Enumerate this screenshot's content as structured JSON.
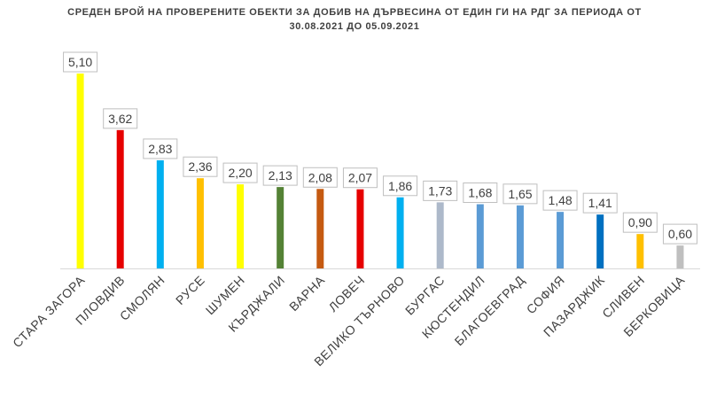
{
  "chart_data": {
    "type": "bar",
    "title_line1": "СРЕДЕН БРОЙ НА ПРОВЕРЕНИТЕ ОБЕКТИ ЗА ДОБИВ НА ДЪРВЕСИНА ОТ ЕДИН ГИ НА РДГ ЗА ПЕРИОДА ОТ",
    "title_line2": "30.08.2021 ДО 05.09.2021",
    "categories": [
      "СТАРА ЗАГОРА",
      "ПЛОВДИВ",
      "СМОЛЯН",
      "РУСЕ",
      "ШУМЕН",
      "КЪРДЖАЛИ",
      "ВАРНА",
      "ЛОВЕЧ",
      "ВЕЛИКО ТЪРНОВО",
      "БУРГАС",
      "КЮСТЕНДИЛ",
      "БЛАГОЕВГРАД",
      "СОФИЯ",
      "ПАЗАРДЖИК",
      "СЛИВЕН",
      "БЕРКОВИЦА"
    ],
    "values": [
      5.1,
      3.62,
      2.83,
      2.36,
      2.2,
      2.13,
      2.08,
      2.07,
      1.86,
      1.73,
      1.68,
      1.65,
      1.48,
      1.41,
      0.9,
      0.6
    ],
    "value_labels": [
      "5,10",
      "3,62",
      "2,83",
      "2,36",
      "2,20",
      "2,13",
      "2,08",
      "2,07",
      "1,86",
      "1,73",
      "1,68",
      "1,65",
      "1,48",
      "1,41",
      "0,90",
      "0,60"
    ],
    "colors": [
      "#FFFF00",
      "#E60000",
      "#00B0F0",
      "#FFC000",
      "#FFFF00",
      "#548235",
      "#C55A11",
      "#E60000",
      "#00B0F0",
      "#ADB9CA",
      "#5B9BD5",
      "#5B9BD5",
      "#5B9BD5",
      "#0070C0",
      "#FFC000",
      "#BFBFBF"
    ],
    "ylim": [
      0,
      5.3
    ],
    "grid": false,
    "legend": "none"
  }
}
